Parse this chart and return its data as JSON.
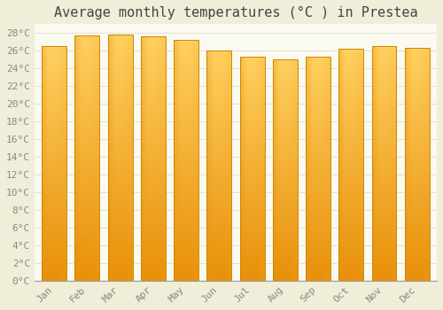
{
  "title": "Average monthly temperatures (°C ) in Prestea",
  "months": [
    "Jan",
    "Feb",
    "Mar",
    "Apr",
    "May",
    "Jun",
    "Jul",
    "Aug",
    "Sep",
    "Oct",
    "Nov",
    "Dec"
  ],
  "values": [
    26.5,
    27.7,
    27.8,
    27.6,
    27.2,
    26.0,
    25.3,
    25.0,
    25.3,
    26.2,
    26.5,
    26.3
  ],
  "bar_color_dark": "#E8900A",
  "bar_color_mid": "#F5A623",
  "bar_color_light": "#FFD060",
  "background_color": "#F0EED8",
  "plot_background": "#FAFAF0",
  "ylim": [
    0,
    29
  ],
  "yticks": [
    0,
    2,
    4,
    6,
    8,
    10,
    12,
    14,
    16,
    18,
    20,
    22,
    24,
    26,
    28
  ],
  "ytick_labels": [
    "0°C",
    "2°C",
    "4°C",
    "6°C",
    "8°C",
    "10°C",
    "12°C",
    "14°C",
    "16°C",
    "18°C",
    "20°C",
    "22°C",
    "24°C",
    "26°C",
    "28°C"
  ],
  "title_fontsize": 11,
  "tick_fontsize": 8,
  "grid_color": "#DDDDD0",
  "bar_width": 0.75,
  "edge_color": "#CC8800"
}
